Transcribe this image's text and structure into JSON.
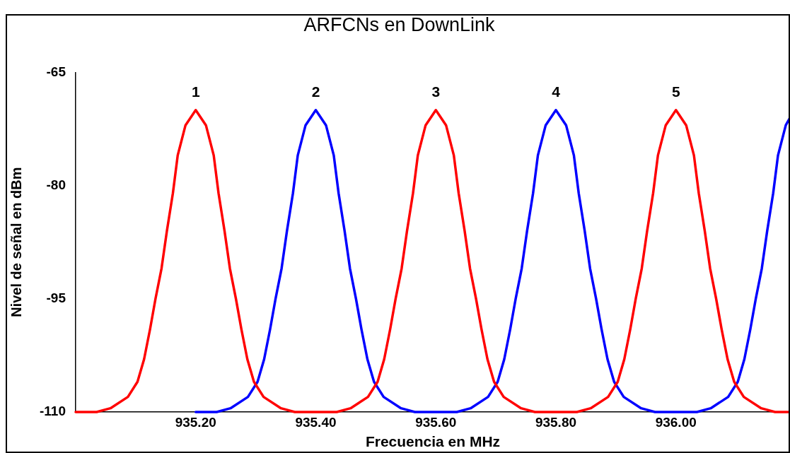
{
  "chart_data": {
    "type": "line",
    "title": "ARFCNs en DownLink",
    "xlabel": "Frecuencia en MHz",
    "ylabel": "Nivel de señal en dBm",
    "xlim": [
      935.0,
      936.19
    ],
    "ylim": [
      -110,
      -65
    ],
    "xticks": [
      {
        "value": 935.2,
        "label": "935.20"
      },
      {
        "value": 935.4,
        "label": "935.40"
      },
      {
        "value": 935.6,
        "label": "935.60"
      },
      {
        "value": 935.8,
        "label": "935.80"
      },
      {
        "value": 936.0,
        "label": "936.00"
      }
    ],
    "yticks": [
      -110,
      -95,
      -80,
      -65
    ],
    "grid": false,
    "legend": false,
    "annotations": [
      {
        "text": "1",
        "x": 935.2,
        "y": -70
      },
      {
        "text": "2",
        "x": 935.4,
        "y": -70
      },
      {
        "text": "3",
        "x": 935.6,
        "y": -70
      },
      {
        "text": "4",
        "x": 935.8,
        "y": -70
      },
      {
        "text": "5",
        "x": 936.0,
        "y": -70
      }
    ],
    "series": [
      {
        "color": "#ff0000",
        "x": [
          935.0,
          935.035,
          935.058,
          935.087,
          935.103,
          935.114,
          935.124,
          935.133,
          935.143,
          935.152,
          935.162,
          935.17,
          935.183,
          935.2,
          935.217,
          935.23,
          935.238,
          935.248,
          935.257,
          935.267,
          935.276,
          935.286,
          935.297,
          935.313,
          935.342,
          935.365,
          935.435,
          935.458,
          935.487,
          935.503,
          935.514,
          935.524,
          935.533,
          935.543,
          935.552,
          935.562,
          935.57,
          935.583,
          935.6,
          935.617,
          935.63,
          935.638,
          935.648,
          935.657,
          935.667,
          935.676,
          935.686,
          935.697,
          935.713,
          935.742,
          935.765,
          935.835,
          935.858,
          935.887,
          935.903,
          935.914,
          935.924,
          935.933,
          935.943,
          935.952,
          935.962,
          935.97,
          935.983,
          936.0,
          936.017,
          936.03,
          936.038,
          936.048,
          936.057,
          936.067,
          936.076,
          936.086,
          936.097,
          936.113,
          936.142,
          936.165,
          936.19
        ],
        "values": [
          -110,
          -110,
          -109.5,
          -108,
          -106,
          -103,
          -99,
          -95,
          -91,
          -86,
          -81,
          -76,
          -72,
          -70,
          -72,
          -76,
          -81,
          -86,
          -91,
          -95,
          -99,
          -103,
          -106,
          -108,
          -109.5,
          -110,
          -110,
          -109.5,
          -108,
          -106,
          -103,
          -99,
          -95,
          -91,
          -86,
          -81,
          -76,
          -72,
          -70,
          -72,
          -76,
          -81,
          -86,
          -91,
          -95,
          -99,
          -103,
          -106,
          -108,
          -109.5,
          -110,
          -110,
          -109.5,
          -108,
          -106,
          -103,
          -99,
          -95,
          -91,
          -86,
          -81,
          -76,
          -72,
          -70,
          -72,
          -76,
          -81,
          -86,
          -91,
          -95,
          -99,
          -103,
          -106,
          -108,
          -109.5,
          -110,
          -110
        ]
      },
      {
        "color": "#0000ff",
        "x": [
          935.2,
          935.235,
          935.258,
          935.287,
          935.303,
          935.314,
          935.324,
          935.333,
          935.343,
          935.352,
          935.362,
          935.37,
          935.383,
          935.4,
          935.417,
          935.43,
          935.438,
          935.448,
          935.457,
          935.467,
          935.476,
          935.486,
          935.497,
          935.513,
          935.542,
          935.565,
          935.635,
          935.658,
          935.687,
          935.703,
          935.714,
          935.724,
          935.733,
          935.743,
          935.752,
          935.762,
          935.77,
          935.783,
          935.8,
          935.817,
          935.83,
          935.838,
          935.848,
          935.857,
          935.867,
          935.876,
          935.886,
          935.897,
          935.913,
          935.942,
          935.965,
          936.035,
          936.058,
          936.087,
          936.103,
          936.114,
          936.124,
          936.133,
          936.143,
          936.152,
          936.162,
          936.17,
          936.183,
          936.19
        ],
        "values": [
          -110,
          -110,
          -109.5,
          -108,
          -106,
          -103,
          -99,
          -95,
          -91,
          -86,
          -81,
          -76,
          -72,
          -70,
          -72,
          -76,
          -81,
          -86,
          -91,
          -95,
          -99,
          -103,
          -106,
          -108,
          -109.5,
          -110,
          -110,
          -109.5,
          -108,
          -106,
          -103,
          -99,
          -95,
          -91,
          -86,
          -81,
          -76,
          -72,
          -70,
          -72,
          -76,
          -81,
          -86,
          -91,
          -95,
          -99,
          -103,
          -106,
          -108,
          -109.5,
          -110,
          -110,
          -109.5,
          -108,
          -106,
          -103,
          -99,
          -95,
          -91,
          -86,
          -81,
          -76,
          -72,
          -71
        ]
      }
    ]
  }
}
